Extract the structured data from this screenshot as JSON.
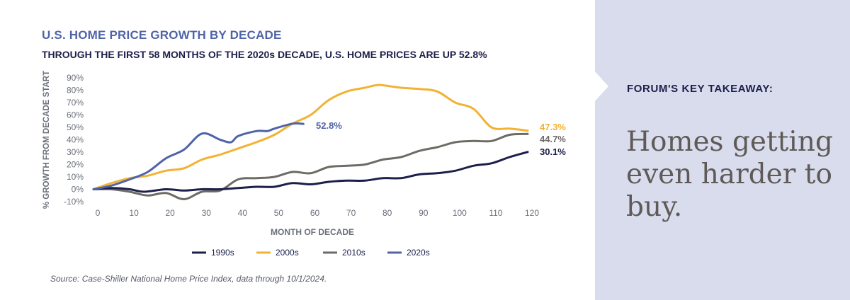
{
  "title": "U.S. HOME PRICE GROWTH BY DECADE",
  "subtitle": "THROUGH THE FIRST 58 MONTHS OF THE 2020s DECADE, U.S. HOME PRICES ARE UP 52.8%",
  "source": "Source: Case-Shiller National Home Price Index, data through 10/1/2024.",
  "takeaway": {
    "label": "FORUM'S KEY TAKEAWAY:",
    "text": "Homes getting even harder to buy."
  },
  "colors": {
    "1990s": "#1c1f4a",
    "2000s": "#f2b233",
    "2010s": "#6e6a66",
    "2020s": "#4f64a8",
    "axis_text": "#6b6f7a",
    "right_panel": "#d8dcec"
  },
  "chart_data": {
    "type": "line",
    "title": "U.S. HOME PRICE GROWTH BY DECADE",
    "xlabel": "MONTH OF DECADE",
    "ylabel": "% GROWTH FROM DECADE START",
    "xlim": [
      0,
      120
    ],
    "ylim": [
      -10,
      90
    ],
    "x_ticks": [
      "0",
      "10",
      "20",
      "30",
      "40",
      "50",
      "60",
      "70",
      "80",
      "90",
      "100",
      "110",
      "120"
    ],
    "y_ticks": [
      "90%",
      "80%",
      "70%",
      "60%",
      "50%",
      "40%",
      "30%",
      "20%",
      "10%",
      "0%",
      "-10%"
    ],
    "legend_position": "bottom-center",
    "series": [
      {
        "name": "1990s",
        "end_label": "30.1%",
        "x": [
          0,
          5,
          10,
          14,
          20,
          25,
          30,
          35,
          40,
          45,
          50,
          55,
          60,
          65,
          70,
          75,
          80,
          85,
          90,
          95,
          100,
          105,
          110,
          115,
          120
        ],
        "values": [
          0,
          1,
          0,
          -2,
          0,
          -1,
          0,
          0,
          1,
          2,
          2,
          5,
          4,
          6,
          7,
          7,
          9,
          9,
          12,
          13,
          15,
          19,
          21,
          26,
          30.1
        ]
      },
      {
        "name": "2000s",
        "end_label": "47.3%",
        "x": [
          0,
          5,
          10,
          15,
          20,
          25,
          30,
          35,
          40,
          45,
          50,
          55,
          60,
          65,
          70,
          75,
          78,
          80,
          85,
          90,
          95,
          100,
          105,
          110,
          115,
          120
        ],
        "values": [
          0,
          5,
          9,
          11,
          15,
          17,
          24,
          28,
          33,
          38,
          44,
          53,
          60,
          72,
          79,
          82,
          84,
          84,
          82,
          81,
          79,
          70,
          65,
          50,
          49,
          47.3
        ]
      },
      {
        "name": "2010s",
        "end_label": "44.7%",
        "x": [
          0,
          5,
          10,
          15,
          20,
          25,
          30,
          35,
          40,
          45,
          50,
          55,
          60,
          65,
          70,
          75,
          80,
          85,
          90,
          95,
          100,
          105,
          110,
          115,
          120
        ],
        "values": [
          0,
          0,
          -2,
          -5,
          -3,
          -8,
          -2,
          -1,
          8,
          9,
          10,
          14,
          13,
          18,
          19,
          20,
          24,
          26,
          31,
          34,
          38,
          39,
          39,
          44,
          44.7
        ]
      },
      {
        "name": "2020s",
        "end_label": "52.8%",
        "x": [
          0,
          5,
          10,
          15,
          20,
          25,
          30,
          35,
          38,
          40,
          45,
          48,
          50,
          55,
          58
        ],
        "values": [
          0,
          3,
          8,
          14,
          25,
          32,
          45,
          40,
          38,
          43,
          47,
          47,
          49,
          53,
          52.8
        ]
      }
    ]
  }
}
